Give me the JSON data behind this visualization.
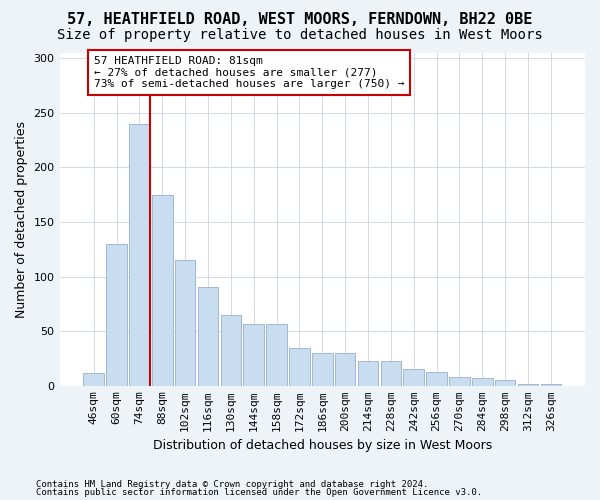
{
  "title": "57, HEATHFIELD ROAD, WEST MOORS, FERNDOWN, BH22 0BE",
  "subtitle": "Size of property relative to detached houses in West Moors",
  "xlabel": "Distribution of detached houses by size in West Moors",
  "ylabel": "Number of detached properties",
  "categories": [
    "46sqm",
    "60sqm",
    "74sqm",
    "88sqm",
    "102sqm",
    "116sqm",
    "130sqm",
    "144sqm",
    "158sqm",
    "172sqm",
    "186sqm",
    "200sqm",
    "214sqm",
    "228sqm",
    "242sqm",
    "256sqm",
    "270sqm",
    "284sqm",
    "298sqm",
    "312sqm",
    "326sqm"
  ],
  "values": [
    12,
    130,
    240,
    175,
    115,
    90,
    65,
    57,
    57,
    35,
    30,
    30,
    23,
    23,
    15,
    13,
    8,
    7,
    5,
    2,
    2
  ],
  "bar_color": "#c9ddf0",
  "bar_edge_color": "#a0b8d0",
  "vline_color": "#cc0000",
  "annotation_text": "57 HEATHFIELD ROAD: 81sqm\n← 27% of detached houses are smaller (277)\n73% of semi-detached houses are larger (750) →",
  "annotation_box_color": "white",
  "annotation_box_edge_color": "#cc0000",
  "footnote1": "Contains HM Land Registry data © Crown copyright and database right 2024.",
  "footnote2": "Contains public sector information licensed under the Open Government Licence v3.0.",
  "bg_color": "#eef3f8",
  "plot_bg_color": "white",
  "ylim": [
    0,
    305
  ],
  "title_fontsize": 11,
  "subtitle_fontsize": 10,
  "xlabel_fontsize": 9,
  "ylabel_fontsize": 9,
  "tick_fontsize": 8,
  "annot_fontsize": 8,
  "footnote_fontsize": 6.5
}
